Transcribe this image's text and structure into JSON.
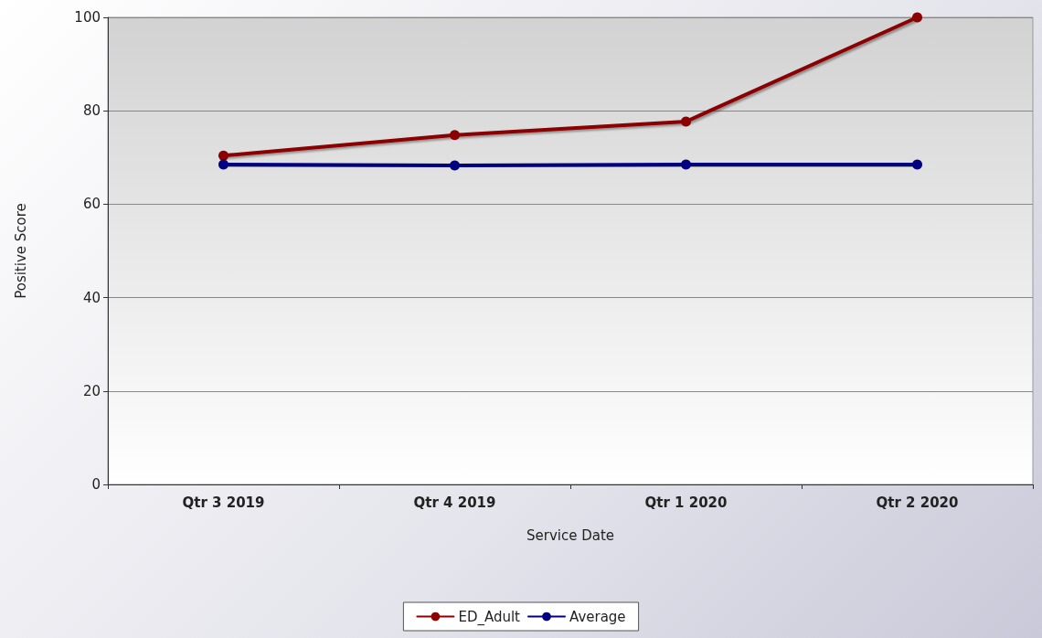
{
  "chart_data": {
    "type": "line",
    "xlabel": "Service Date",
    "ylabel": "Positive Score",
    "categories": [
      "Qtr 3 2019",
      "Qtr 4 2019",
      "Qtr 1 2020",
      "Qtr 2 2020"
    ],
    "series": [
      {
        "name": "ED_Adult",
        "color": "#8b0000",
        "values": [
          70.4,
          74.8,
          77.7,
          100
        ]
      },
      {
        "name": "Average",
        "color": "#000080",
        "values": [
          68.5,
          68.3,
          68.5,
          68.5
        ]
      }
    ],
    "ylim": [
      0,
      100
    ],
    "yticks": [
      0,
      20,
      40,
      60,
      80,
      100
    ],
    "grid": "y",
    "legend": "bottom",
    "marker": "circle",
    "line_style": "solid"
  }
}
